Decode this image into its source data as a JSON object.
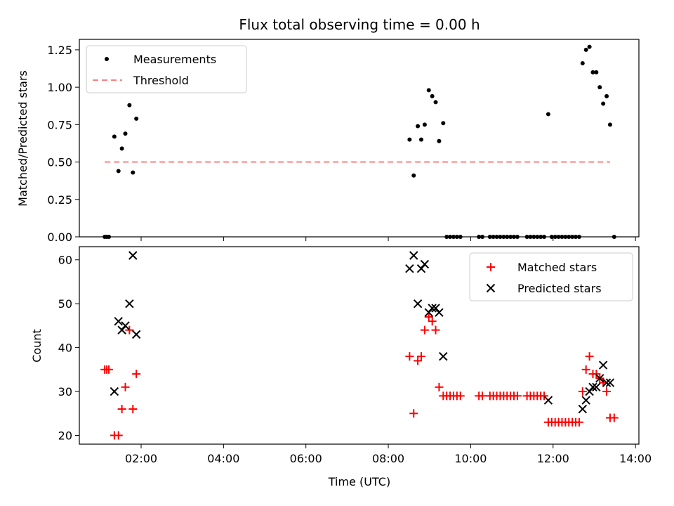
{
  "chart_data": [
    {
      "type": "scatter",
      "title": "Flux total observing time = 0.00 h",
      "xlabel": "",
      "ylabel": "Matched/Predicted stars",
      "ylim": [
        0,
        1.32
      ],
      "y_ticks": [
        "0.00",
        "0.25",
        "0.50",
        "0.75",
        "1.00",
        "1.25"
      ],
      "legend_position": "top-left",
      "colors": {
        "measurements": "#000000",
        "threshold": "#ff7f7f"
      },
      "series": [
        {
          "name": "Measurements",
          "points": [
            [
              "01:07",
              0.0
            ],
            [
              "01:10",
              0.0
            ],
            [
              "01:13",
              0.0
            ],
            [
              "01:21",
              0.67
            ],
            [
              "01:27",
              0.44
            ],
            [
              "01:32",
              0.59
            ],
            [
              "01:37",
              0.69
            ],
            [
              "01:43",
              0.88
            ],
            [
              "01:48",
              0.43
            ],
            [
              "01:53",
              0.79
            ],
            [
              "08:31",
              0.65
            ],
            [
              "08:37",
              0.41
            ],
            [
              "08:43",
              0.74
            ],
            [
              "08:48",
              0.65
            ],
            [
              "08:53",
              0.75
            ],
            [
              "08:59",
              0.98
            ],
            [
              "09:04",
              0.94
            ],
            [
              "09:09",
              0.9
            ],
            [
              "09:14",
              0.64
            ],
            [
              "09:20",
              0.76
            ],
            [
              "09:25",
              0.0
            ],
            [
              "09:30",
              0.0
            ],
            [
              "09:35",
              0.0
            ],
            [
              "09:40",
              0.0
            ],
            [
              "09:45",
              0.0
            ],
            [
              "10:12",
              0.0
            ],
            [
              "10:17",
              0.0
            ],
            [
              "10:28",
              0.0
            ],
            [
              "10:33",
              0.0
            ],
            [
              "10:38",
              0.0
            ],
            [
              "10:43",
              0.0
            ],
            [
              "10:48",
              0.0
            ],
            [
              "10:53",
              0.0
            ],
            [
              "10:58",
              0.0
            ],
            [
              "11:03",
              0.0
            ],
            [
              "11:08",
              0.0
            ],
            [
              "11:22",
              0.0
            ],
            [
              "11:27",
              0.0
            ],
            [
              "11:32",
              0.0
            ],
            [
              "11:37",
              0.0
            ],
            [
              "11:42",
              0.0
            ],
            [
              "11:47",
              0.0
            ],
            [
              "11:53",
              0.82
            ],
            [
              "11:58",
              0.0
            ],
            [
              "12:03",
              0.0
            ],
            [
              "12:08",
              0.0
            ],
            [
              "12:13",
              0.0
            ],
            [
              "12:18",
              0.0
            ],
            [
              "12:23",
              0.0
            ],
            [
              "12:28",
              0.0
            ],
            [
              "12:33",
              0.0
            ],
            [
              "12:38",
              0.0
            ],
            [
              "12:43",
              1.16
            ],
            [
              "12:48",
              1.25
            ],
            [
              "12:53",
              1.27
            ],
            [
              "12:58",
              1.1
            ],
            [
              "13:03",
              1.1
            ],
            [
              "13:08",
              1.0
            ],
            [
              "13:13",
              0.89
            ],
            [
              "13:18",
              0.94
            ],
            [
              "13:23",
              0.75
            ],
            [
              "13:29",
              0.0
            ]
          ]
        },
        {
          "name": "Threshold",
          "line": [
            [
              "01:07",
              0.5
            ],
            [
              "13:23",
              0.5
            ]
          ]
        }
      ]
    },
    {
      "type": "scatter",
      "title": "",
      "xlabel": "Time (UTC)",
      "ylabel": "Count",
      "ylim": [
        18,
        63
      ],
      "y_ticks": [
        "20",
        "30",
        "40",
        "50",
        "60"
      ],
      "xlim": [
        "00:30",
        "14:05"
      ],
      "x_ticks": [
        "02:00",
        "04:00",
        "06:00",
        "08:00",
        "10:00",
        "12:00",
        "14:00"
      ],
      "legend_position": "top-right",
      "colors": {
        "matched": "#ff0000",
        "predicted": "#000000"
      },
      "series": [
        {
          "name": "Matched stars",
          "points": [
            [
              "01:07",
              35
            ],
            [
              "01:10",
              35
            ],
            [
              "01:13",
              35
            ],
            [
              "01:21",
              20
            ],
            [
              "01:27",
              20
            ],
            [
              "01:32",
              26
            ],
            [
              "01:37",
              31
            ],
            [
              "01:43",
              44
            ],
            [
              "01:48",
              26
            ],
            [
              "01:53",
              34
            ],
            [
              "08:31",
              38
            ],
            [
              "08:37",
              25
            ],
            [
              "08:43",
              37
            ],
            [
              "08:48",
              38
            ],
            [
              "08:53",
              44
            ],
            [
              "08:59",
              47
            ],
            [
              "09:04",
              46
            ],
            [
              "09:09",
              44
            ],
            [
              "09:14",
              31
            ],
            [
              "09:20",
              29
            ],
            [
              "09:25",
              29
            ],
            [
              "09:30",
              29
            ],
            [
              "09:35",
              29
            ],
            [
              "09:40",
              29
            ],
            [
              "09:45",
              29
            ],
            [
              "10:12",
              29
            ],
            [
              "10:17",
              29
            ],
            [
              "10:28",
              29
            ],
            [
              "10:33",
              29
            ],
            [
              "10:38",
              29
            ],
            [
              "10:43",
              29
            ],
            [
              "10:48",
              29
            ],
            [
              "10:53",
              29
            ],
            [
              "10:58",
              29
            ],
            [
              "11:03",
              29
            ],
            [
              "11:08",
              29
            ],
            [
              "11:22",
              29
            ],
            [
              "11:27",
              29
            ],
            [
              "11:32",
              29
            ],
            [
              "11:37",
              29
            ],
            [
              "11:42",
              29
            ],
            [
              "11:47",
              29
            ],
            [
              "11:53",
              23
            ],
            [
              "11:58",
              23
            ],
            [
              "12:03",
              23
            ],
            [
              "12:08",
              23
            ],
            [
              "12:13",
              23
            ],
            [
              "12:18",
              23
            ],
            [
              "12:23",
              23
            ],
            [
              "12:28",
              23
            ],
            [
              "12:33",
              23
            ],
            [
              "12:38",
              23
            ],
            [
              "12:43",
              30
            ],
            [
              "12:48",
              35
            ],
            [
              "12:53",
              38
            ],
            [
              "12:58",
              34
            ],
            [
              "13:03",
              34
            ],
            [
              "13:08",
              33
            ],
            [
              "13:13",
              32
            ],
            [
              "13:18",
              30
            ],
            [
              "13:23",
              24
            ],
            [
              "13:29",
              24
            ]
          ]
        },
        {
          "name": "Predicted stars",
          "points": [
            [
              "01:21",
              30
            ],
            [
              "01:27",
              46
            ],
            [
              "01:32",
              44
            ],
            [
              "01:37",
              45
            ],
            [
              "01:43",
              50
            ],
            [
              "01:48",
              61
            ],
            [
              "01:53",
              43
            ],
            [
              "08:31",
              58
            ],
            [
              "08:37",
              61
            ],
            [
              "08:43",
              50
            ],
            [
              "08:48",
              58
            ],
            [
              "08:53",
              59
            ],
            [
              "08:59",
              48
            ],
            [
              "09:04",
              49
            ],
            [
              "09:09",
              49
            ],
            [
              "09:14",
              48
            ],
            [
              "09:20",
              38
            ],
            [
              "11:53",
              28
            ],
            [
              "12:43",
              26
            ],
            [
              "12:48",
              28
            ],
            [
              "12:53",
              30
            ],
            [
              "12:58",
              31
            ],
            [
              "13:03",
              31
            ],
            [
              "13:08",
              33
            ],
            [
              "13:13",
              36
            ],
            [
              "13:18",
              32
            ],
            [
              "13:23",
              32
            ]
          ]
        }
      ]
    }
  ]
}
